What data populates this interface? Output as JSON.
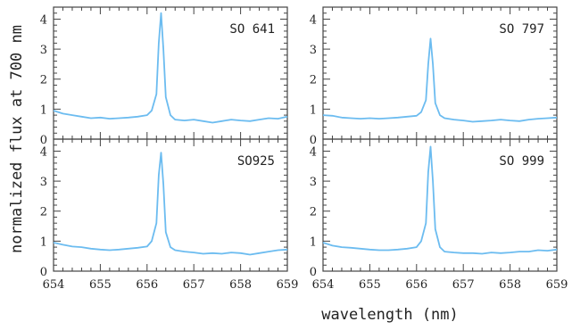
{
  "chart_data": {
    "type": "line",
    "xlabel": "wavelength (nm)",
    "ylabel": "normalized flux at 700 nm",
    "xlim": [
      654,
      659
    ],
    "ylim": [
      0,
      4.4
    ],
    "x_ticks": [
      "654",
      "655",
      "656",
      "657",
      "658",
      "659"
    ],
    "y_ticks": [
      "0",
      "1",
      "2",
      "3",
      "4"
    ],
    "line_color": "#6cbcf0",
    "layout": "2x2 grid",
    "panels": [
      {
        "label": "SO 641",
        "series": [
          {
            "x": [
              654.0,
              654.2,
              654.4,
              654.6,
              654.8,
              655.0,
              655.2,
              655.4,
              655.6,
              655.8,
              656.0,
              656.1,
              656.2,
              656.25,
              656.3,
              656.35,
              656.4,
              656.5,
              656.6,
              656.8,
              657.0,
              657.2,
              657.4,
              657.6,
              657.8,
              658.0,
              658.2,
              658.4,
              658.6,
              658.8,
              659.0
            ],
            "y": [
              0.95,
              0.85,
              0.8,
              0.75,
              0.7,
              0.72,
              0.68,
              0.7,
              0.72,
              0.75,
              0.8,
              0.95,
              1.5,
              3.2,
              4.2,
              3.0,
              1.4,
              0.8,
              0.65,
              0.62,
              0.65,
              0.6,
              0.55,
              0.6,
              0.65,
              0.62,
              0.6,
              0.65,
              0.7,
              0.68,
              0.75
            ]
          }
        ]
      },
      {
        "label": "SO 797",
        "series": [
          {
            "x": [
              654.0,
              654.2,
              654.4,
              654.6,
              654.8,
              655.0,
              655.2,
              655.4,
              655.6,
              655.8,
              656.0,
              656.1,
              656.2,
              656.25,
              656.3,
              656.35,
              656.4,
              656.5,
              656.6,
              656.8,
              657.0,
              657.2,
              657.4,
              657.6,
              657.8,
              658.0,
              658.2,
              658.4,
              658.6,
              658.8,
              659.0
            ],
            "y": [
              0.8,
              0.78,
              0.72,
              0.7,
              0.68,
              0.7,
              0.68,
              0.7,
              0.72,
              0.75,
              0.78,
              0.9,
              1.3,
              2.5,
              3.35,
              2.5,
              1.2,
              0.8,
              0.7,
              0.65,
              0.62,
              0.58,
              0.6,
              0.62,
              0.65,
              0.62,
              0.6,
              0.65,
              0.68,
              0.7,
              0.72
            ]
          }
        ]
      },
      {
        "label": "SO925",
        "series": [
          {
            "x": [
              654.0,
              654.2,
              654.4,
              654.6,
              654.8,
              655.0,
              655.2,
              655.4,
              655.6,
              655.8,
              656.0,
              656.1,
              656.2,
              656.25,
              656.3,
              656.35,
              656.4,
              656.5,
              656.6,
              656.8,
              657.0,
              657.2,
              657.4,
              657.6,
              657.8,
              658.0,
              658.2,
              658.4,
              658.6,
              658.8,
              659.0
            ],
            "y": [
              0.95,
              0.88,
              0.82,
              0.8,
              0.75,
              0.72,
              0.7,
              0.72,
              0.75,
              0.78,
              0.82,
              1.0,
              1.6,
              3.2,
              3.95,
              2.9,
              1.3,
              0.8,
              0.7,
              0.65,
              0.62,
              0.58,
              0.6,
              0.58,
              0.62,
              0.6,
              0.55,
              0.6,
              0.65,
              0.7,
              0.72
            ]
          }
        ]
      },
      {
        "label": "SO 999",
        "series": [
          {
            "x": [
              654.0,
              654.2,
              654.4,
              654.6,
              654.8,
              655.0,
              655.2,
              655.4,
              655.6,
              655.8,
              656.0,
              656.1,
              656.2,
              656.25,
              656.3,
              656.35,
              656.4,
              656.5,
              656.6,
              656.8,
              657.0,
              657.2,
              657.4,
              657.6,
              657.8,
              658.0,
              658.2,
              658.4,
              658.6,
              658.8,
              659.0
            ],
            "y": [
              0.95,
              0.85,
              0.8,
              0.78,
              0.75,
              0.72,
              0.7,
              0.7,
              0.72,
              0.75,
              0.8,
              1.0,
              1.6,
              3.3,
              4.15,
              3.0,
              1.4,
              0.8,
              0.65,
              0.62,
              0.6,
              0.6,
              0.58,
              0.62,
              0.6,
              0.62,
              0.65,
              0.65,
              0.7,
              0.68,
              0.72
            ]
          }
        ]
      }
    ]
  }
}
